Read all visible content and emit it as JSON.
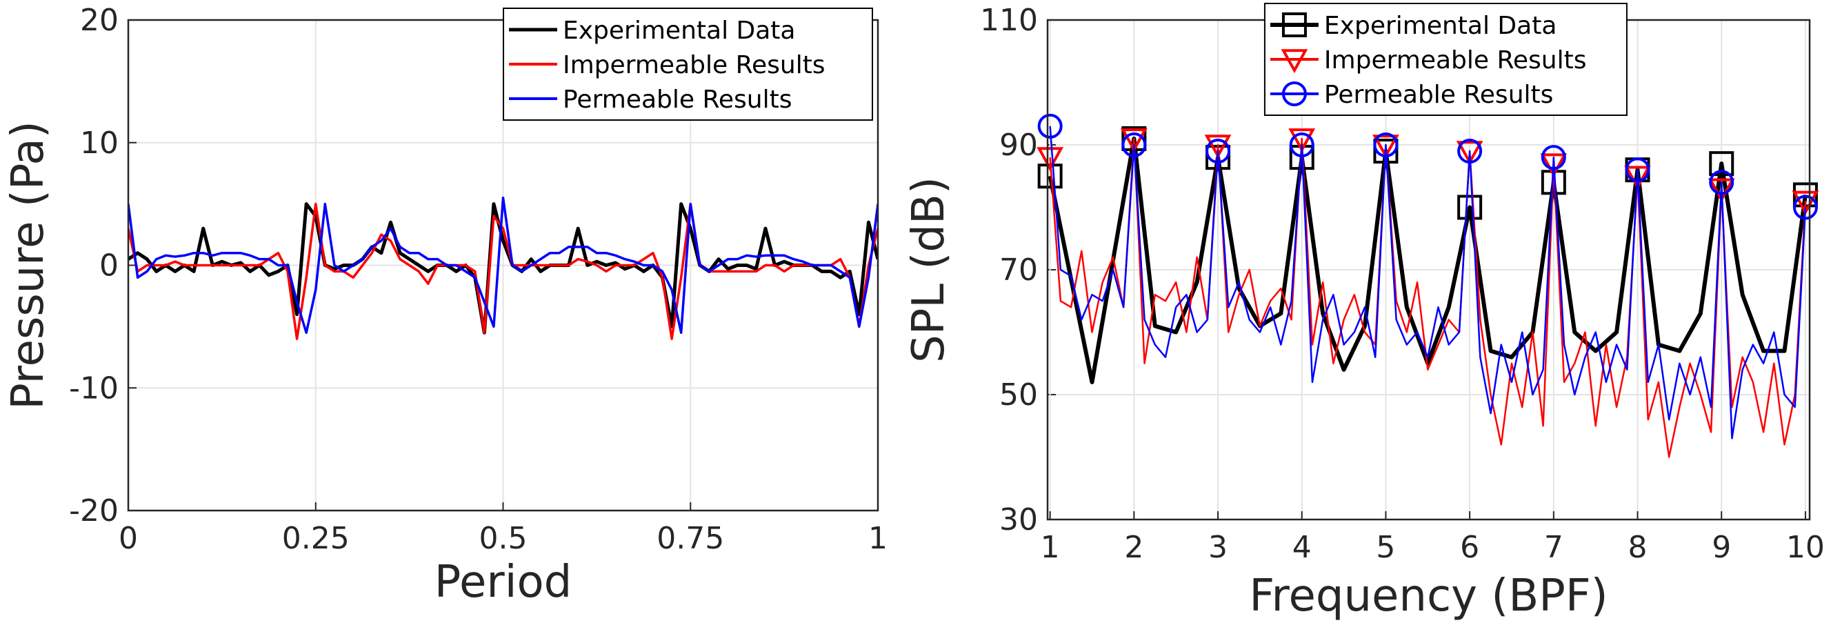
{
  "chart_data": [
    {
      "type": "line",
      "xlabel": "Period",
      "ylabel": "Pressure (Pa)",
      "xlim": [
        0,
        1
      ],
      "ylim": [
        -20,
        20
      ],
      "xticks": [
        0,
        0.25,
        0.5,
        0.75,
        1
      ],
      "yticks": [
        -20,
        -10,
        0,
        10,
        20
      ],
      "grid": true,
      "legend": "northeast",
      "x": [
        0,
        0.0125,
        0.025,
        0.0375,
        0.05,
        0.0625,
        0.075,
        0.0875,
        0.1,
        0.1125,
        0.125,
        0.1375,
        0.15,
        0.1625,
        0.175,
        0.1875,
        0.2,
        0.2125,
        0.225,
        0.2375,
        0.25,
        0.2625,
        0.275,
        0.2875,
        0.3,
        0.3125,
        0.325,
        0.3375,
        0.35,
        0.3625,
        0.375,
        0.3875,
        0.4,
        0.4125,
        0.425,
        0.4375,
        0.45,
        0.4625,
        0.475,
        0.4875,
        0.5,
        0.5125,
        0.525,
        0.5375,
        0.55,
        0.5625,
        0.575,
        0.5875,
        0.6,
        0.6125,
        0.625,
        0.6375,
        0.65,
        0.6625,
        0.675,
        0.6875,
        0.7,
        0.7125,
        0.725,
        0.7375,
        0.75,
        0.7625,
        0.775,
        0.7875,
        0.8,
        0.8125,
        0.825,
        0.8375,
        0.85,
        0.8625,
        0.875,
        0.8875,
        0.9,
        0.9125,
        0.925,
        0.9375,
        0.95,
        0.9625,
        0.975,
        0.9875,
        1
      ],
      "series": [
        {
          "name": "Experimental Data",
          "color": "#000000",
          "width": 5,
          "values": [
            0.5,
            1,
            0.5,
            -0.5,
            0,
            -0.5,
            0,
            -0.5,
            3,
            0,
            0.3,
            0,
            0.2,
            -0.5,
            0,
            -0.8,
            -0.5,
            0,
            -4,
            5,
            4,
            0,
            -0.3,
            0,
            0,
            0.5,
            1.5,
            1,
            3.5,
            1,
            0.5,
            0,
            -0.5,
            0,
            0,
            -0.5,
            0,
            -1,
            -5.5,
            5,
            2,
            0,
            -0.5,
            0.5,
            -0.5,
            0,
            0,
            0,
            3,
            0,
            0.3,
            0,
            0.2,
            -0.3,
            0,
            -0.5,
            0,
            -1,
            -5,
            5,
            3,
            0,
            -0.5,
            0.5,
            -0.3,
            0,
            0,
            -0.3,
            3,
            0,
            0.3,
            0,
            0,
            0,
            -0.5,
            -0.5,
            -1,
            -0.5,
            -4,
            3.5,
            0.5
          ]
        },
        {
          "name": "Impermeable Results",
          "color": "#ff0000",
          "width": 3.5,
          "values": [
            3,
            -0.5,
            0,
            0,
            0,
            0.3,
            0,
            0,
            0,
            0,
            0,
            0,
            0,
            0,
            0,
            0.5,
            1,
            -0.5,
            -6,
            -1,
            5,
            0,
            -0.5,
            -0.5,
            -1,
            0,
            1,
            2.5,
            2,
            0.5,
            0,
            -0.5,
            -1.5,
            0,
            0,
            0,
            0,
            -0.5,
            -5.5,
            4,
            3,
            0,
            0,
            0,
            0,
            0,
            0,
            0,
            0.5,
            0.3,
            0,
            -0.5,
            0,
            0,
            0,
            0.5,
            1,
            -1,
            -6,
            -1,
            5,
            0,
            -0.5,
            -0.5,
            -0.5,
            -0.5,
            -0.5,
            -0.5,
            0,
            0,
            -0.5,
            0,
            0,
            0,
            0,
            0,
            0.5,
            -1,
            -5,
            0,
            3
          ]
        },
        {
          "name": "Permeable Results",
          "color": "#0000ff",
          "width": 3.5,
          "values": [
            5,
            -1,
            -0.5,
            0.5,
            0.8,
            0.7,
            0.8,
            1,
            1,
            0.8,
            1,
            1,
            1,
            0.8,
            0.5,
            0.5,
            0,
            0,
            -3,
            -5.5,
            -2,
            5,
            0,
            -0.5,
            0,
            0.5,
            1.5,
            2,
            3,
            1.5,
            1,
            1,
            0.5,
            0.5,
            0,
            0,
            -0.5,
            -1,
            -3,
            -5,
            5.5,
            0,
            -0.5,
            0,
            0.5,
            1,
            1,
            1.5,
            1.5,
            1.5,
            1,
            1,
            0.8,
            0.5,
            0.3,
            0,
            0,
            -0.5,
            -2,
            -5.5,
            5,
            0,
            -0.5,
            0,
            0.5,
            0.5,
            0.8,
            0.7,
            0.8,
            0.8,
            0.8,
            0.5,
            0.3,
            0,
            0,
            0,
            -0.5,
            -1,
            -5,
            -1,
            5
          ]
        }
      ]
    },
    {
      "type": "line",
      "xlabel": "Frequency (BPF)",
      "ylabel": "SPL (dB)",
      "xlim": [
        0.97,
        10.05
      ],
      "ylim": [
        30,
        110
      ],
      "xticks": [
        1,
        2,
        3,
        4,
        5,
        6,
        7,
        8,
        9,
        10
      ],
      "yticks": [
        30,
        50,
        70,
        90,
        110
      ],
      "grid": true,
      "legend": "north",
      "series": [
        {
          "name": "Experimental Data",
          "color": "#000000",
          "width": 6,
          "marker": "square",
          "x": [
            1,
            1.5,
            2,
            2.25,
            2.5,
            2.75,
            3,
            3.25,
            3.5,
            3.75,
            4,
            4.25,
            4.5,
            4.75,
            5,
            5.25,
            5.5,
            5.75,
            6,
            6.25,
            6.5,
            6.75,
            7,
            7.25,
            7.5,
            7.75,
            8,
            8.25,
            8.5,
            8.75,
            9,
            9.25,
            9.5,
            9.75,
            10
          ],
          "values": [
            85,
            52,
            91,
            61,
            60,
            68,
            88,
            67,
            61,
            63,
            88,
            63,
            54,
            61,
            89,
            64,
            55,
            64,
            80,
            57,
            56,
            60,
            84,
            60,
            57,
            60,
            86,
            58,
            57,
            63,
            87,
            66,
            57,
            57,
            82
          ]
        },
        {
          "name": "Impermeable Results",
          "color": "#ff0000",
          "width": 2.5,
          "marker": "triangle",
          "x": [
            1,
            1.125,
            1.25,
            1.375,
            1.5,
            1.625,
            1.75,
            1.875,
            2,
            2.125,
            2.25,
            2.375,
            2.5,
            2.625,
            2.75,
            2.875,
            3,
            3.125,
            3.25,
            3.375,
            3.5,
            3.625,
            3.75,
            3.875,
            4,
            4.125,
            4.25,
            4.375,
            4.5,
            4.625,
            4.75,
            4.875,
            5,
            5.125,
            5.25,
            5.375,
            5.5,
            5.625,
            5.75,
            5.875,
            6,
            6.125,
            6.25,
            6.375,
            6.5,
            6.625,
            6.75,
            6.875,
            7,
            7.125,
            7.25,
            7.375,
            7.5,
            7.625,
            7.75,
            7.875,
            8,
            8.125,
            8.25,
            8.375,
            8.5,
            8.625,
            8.75,
            8.875,
            9,
            9.125,
            9.25,
            9.375,
            9.5,
            9.625,
            9.75,
            9.875,
            10
          ],
          "values": [
            88,
            65,
            64,
            73,
            60,
            68,
            72,
            64,
            91,
            55,
            66,
            65,
            68,
            60,
            72,
            62,
            90,
            60,
            66,
            70,
            61,
            65,
            67,
            62,
            91,
            58,
            68,
            55,
            62,
            66,
            60,
            58,
            90,
            65,
            60,
            68,
            54,
            58,
            62,
            60,
            89,
            62,
            50,
            42,
            55,
            48,
            60,
            45,
            87,
            52,
            55,
            60,
            45,
            58,
            48,
            56,
            85,
            46,
            52,
            40,
            48,
            55,
            50,
            44,
            83,
            48,
            56,
            52,
            44,
            55,
            42,
            50,
            81
          ]
        },
        {
          "name": "Permeable Results",
          "color": "#0000ff",
          "width": 2.5,
          "marker": "circle",
          "x": [
            1,
            1.125,
            1.25,
            1.375,
            1.5,
            1.625,
            1.75,
            1.875,
            2,
            2.125,
            2.25,
            2.375,
            2.5,
            2.625,
            2.75,
            2.875,
            3,
            3.125,
            3.25,
            3.375,
            3.5,
            3.625,
            3.75,
            3.875,
            4,
            4.125,
            4.25,
            4.375,
            4.5,
            4.625,
            4.75,
            4.875,
            5,
            5.125,
            5.25,
            5.375,
            5.5,
            5.625,
            5.75,
            5.875,
            6,
            6.125,
            6.25,
            6.375,
            6.5,
            6.625,
            6.75,
            6.875,
            7,
            7.125,
            7.25,
            7.375,
            7.5,
            7.625,
            7.75,
            7.875,
            8,
            8.125,
            8.25,
            8.375,
            8.5,
            8.625,
            8.75,
            8.875,
            9,
            9.125,
            9.25,
            9.375,
            9.5,
            9.625,
            9.75,
            9.875,
            10
          ],
          "values": [
            93,
            70,
            69,
            62,
            66,
            65,
            70,
            64,
            90,
            62,
            58,
            56,
            64,
            66,
            60,
            62,
            89,
            64,
            68,
            62,
            60,
            64,
            58,
            65,
            90,
            52,
            62,
            66,
            58,
            60,
            64,
            56,
            90,
            62,
            58,
            60,
            56,
            64,
            58,
            60,
            89,
            56,
            47,
            58,
            52,
            60,
            50,
            54,
            88,
            58,
            50,
            56,
            60,
            52,
            58,
            54,
            86,
            52,
            58,
            46,
            55,
            50,
            56,
            48,
            84,
            43,
            54,
            58,
            55,
            60,
            50,
            48,
            80
          ]
        }
      ]
    }
  ]
}
